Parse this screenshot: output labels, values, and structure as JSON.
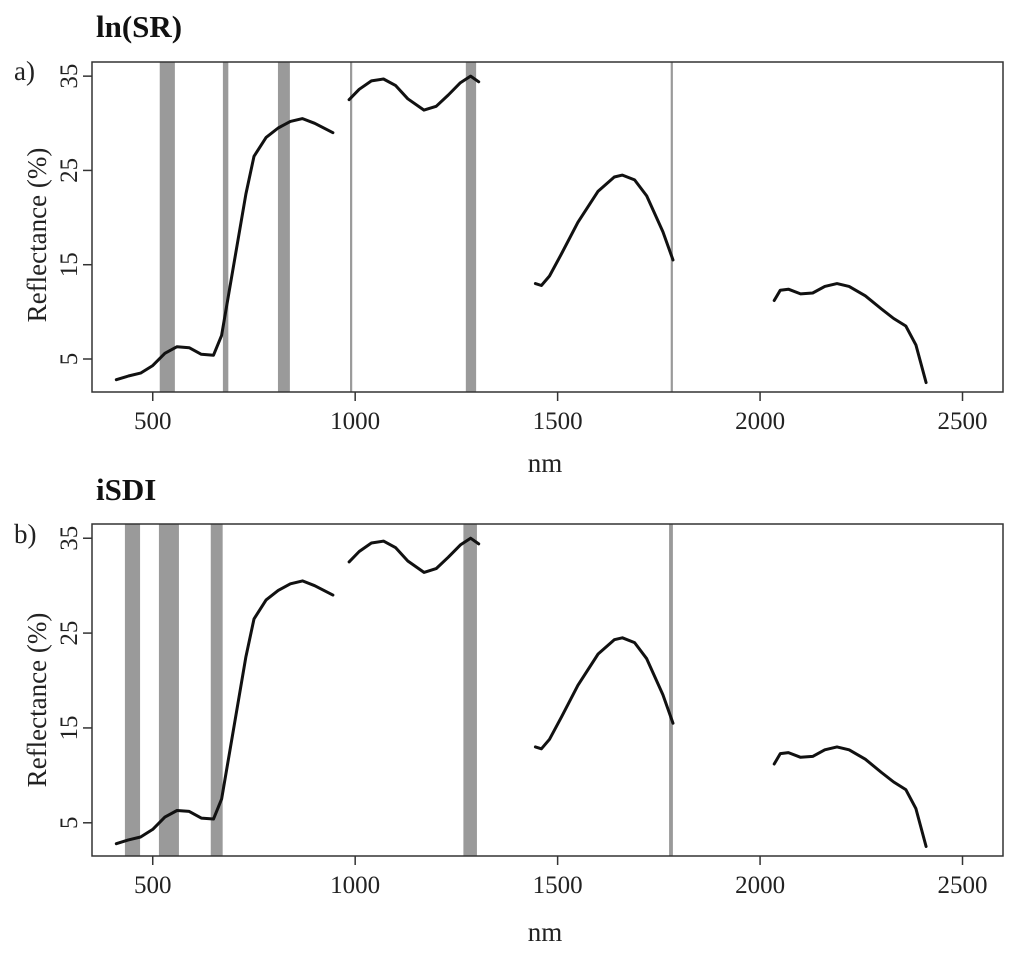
{
  "chart_data": [
    {
      "type": "line",
      "title": "ln(SR)",
      "panel_label": "a)",
      "xlabel": "nm",
      "ylabel": "Reflectance (%)",
      "xlim": [
        350,
        2600
      ],
      "ylim": [
        1.5,
        36.5
      ],
      "xticks": [
        500,
        1000,
        1500,
        2000,
        2500
      ],
      "yticks": [
        5,
        15,
        25,
        35
      ],
      "band_color": "#9a9a9a",
      "line_color": "#111111",
      "selected_bands_nm": [
        520,
        524,
        528,
        532,
        536,
        540,
        544,
        548,
        552,
        676,
        680,
        684,
        812,
        816,
        820,
        824,
        828,
        832,
        836,
        990,
        1276,
        1280,
        1284,
        1288,
        1292,
        1296,
        1782
      ]
    },
    {
      "type": "line",
      "title": "iSDI",
      "panel_label": "b)",
      "xlabel": "nm",
      "ylabel": "Reflectance (%)",
      "xlim": [
        350,
        2600
      ],
      "ylim": [
        1.5,
        36.5
      ],
      "xticks": [
        500,
        1000,
        1500,
        2000,
        2500
      ],
      "yticks": [
        5,
        15,
        25,
        35
      ],
      "band_color": "#9a9a9a",
      "line_color": "#111111",
      "selected_bands_nm": [
        434,
        438,
        442,
        446,
        450,
        454,
        458,
        462,
        466,
        518,
        522,
        526,
        530,
        534,
        538,
        542,
        546,
        550,
        554,
        558,
        562,
        646,
        650,
        654,
        658,
        662,
        666,
        670,
        1270,
        1274,
        1278,
        1282,
        1286,
        1290,
        1294,
        1298,
        1778,
        1782
      ]
    }
  ],
  "spectrum_segments": [
    [
      [
        410,
        2.8
      ],
      [
        440,
        3.2
      ],
      [
        470,
        3.5
      ],
      [
        500,
        4.3
      ],
      [
        530,
        5.6
      ],
      [
        560,
        6.3
      ],
      [
        590,
        6.2
      ],
      [
        620,
        5.5
      ],
      [
        650,
        5.4
      ],
      [
        670,
        7.5
      ],
      [
        690,
        12.5
      ],
      [
        710,
        17.5
      ],
      [
        730,
        22.5
      ],
      [
        750,
        26.5
      ],
      [
        780,
        28.5
      ],
      [
        810,
        29.5
      ],
      [
        840,
        30.2
      ],
      [
        870,
        30.5
      ],
      [
        900,
        30.0
      ],
      [
        945,
        29.0
      ]
    ],
    [
      [
        985,
        32.5
      ],
      [
        1010,
        33.6
      ],
      [
        1040,
        34.5
      ],
      [
        1070,
        34.7
      ],
      [
        1100,
        34.0
      ],
      [
        1130,
        32.6
      ],
      [
        1170,
        31.4
      ],
      [
        1200,
        31.8
      ],
      [
        1230,
        33.0
      ],
      [
        1260,
        34.3
      ],
      [
        1285,
        35.0
      ],
      [
        1305,
        34.4
      ]
    ],
    [
      [
        1445,
        13.0
      ],
      [
        1460,
        12.8
      ],
      [
        1480,
        13.8
      ],
      [
        1510,
        16.2
      ],
      [
        1550,
        19.5
      ],
      [
        1600,
        22.8
      ],
      [
        1640,
        24.3
      ],
      [
        1660,
        24.5
      ],
      [
        1690,
        24.0
      ],
      [
        1720,
        22.3
      ],
      [
        1760,
        18.5
      ],
      [
        1785,
        15.5
      ]
    ],
    [
      [
        2035,
        11.2
      ],
      [
        2050,
        12.3
      ],
      [
        2070,
        12.4
      ],
      [
        2100,
        11.9
      ],
      [
        2130,
        12.0
      ],
      [
        2160,
        12.7
      ],
      [
        2190,
        13.0
      ],
      [
        2220,
        12.7
      ],
      [
        2260,
        11.7
      ],
      [
        2300,
        10.3
      ],
      [
        2330,
        9.3
      ],
      [
        2360,
        8.5
      ],
      [
        2385,
        6.5
      ],
      [
        2410,
        2.5
      ]
    ]
  ]
}
